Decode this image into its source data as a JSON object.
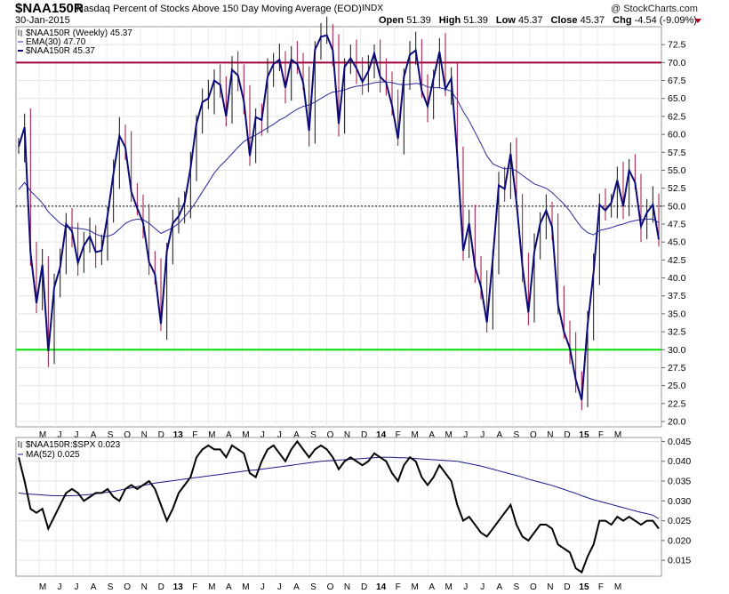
{
  "header": {
    "symbol": "$NAA150R",
    "description": "Nasdaq Percent of Stocks Above 150 Day Moving Average (EOD)",
    "exchange": "INDX",
    "copyright": "@ StockCharts.com",
    "date": "30-Jan-2015",
    "open_label": "Open",
    "open": "51.39",
    "high_label": "High",
    "high": "51.39",
    "low_label": "Low",
    "low": "45.37",
    "close_label": "Close",
    "close": "45.37",
    "chg_label": "Chg",
    "chg": "-4.54 (-9.09%)",
    "chg_arrow_color": "#b00020"
  },
  "chart_data": [
    {
      "type": "line",
      "panel": "main",
      "legend_position": "top-left",
      "legend": [
        "$NAA150R (Weekly) 45.37",
        "EMA(30) 47.70",
        "$NAA150R 45.37"
      ],
      "x_tick_labels": [
        "M",
        "J",
        "J",
        "A",
        "S",
        "O",
        "N",
        "D",
        "13",
        "F",
        "M",
        "A",
        "M",
        "J",
        "J",
        "A",
        "S",
        "O",
        "N",
        "D",
        "14",
        "F",
        "M",
        "A",
        "M",
        "J",
        "J",
        "A",
        "S",
        "O",
        "N",
        "D",
        "15",
        "F",
        "M"
      ],
      "bold_x_tick_labels": [
        "13",
        "14",
        "15"
      ],
      "ylim": [
        20,
        75
      ],
      "y_ticks": [
        20,
        22.5,
        25,
        27.5,
        30,
        32.5,
        35,
        37.5,
        40,
        42.5,
        45,
        47.5,
        50,
        52.5,
        55,
        57.5,
        60,
        62.5,
        65,
        67.5,
        70,
        72.5
      ],
      "reference_lines": [
        {
          "value": 70,
          "color": "#a0003c",
          "style": "solid"
        },
        {
          "value": 30,
          "color": "#00dd00",
          "style": "solid"
        },
        {
          "value": 50,
          "color": "#000000",
          "style": "dashed"
        }
      ],
      "series": [
        {
          "name": "$NAA150R",
          "color": "#0a0a7a",
          "style": "thick",
          "values": [
            58.3,
            61.0,
            43.5,
            36.5,
            41.8,
            29.8,
            38.7,
            41.5,
            47.5,
            46.5,
            42.1,
            44.5,
            45.8,
            43.6,
            43.8,
            48.7,
            54.6,
            59.8,
            58.2,
            52.0,
            49.7,
            47.7,
            42.2,
            40.5,
            33.6,
            43.7,
            47.6,
            48.6,
            50.5,
            55.3,
            61.5,
            64.5,
            65.0,
            67.5,
            66.9,
            62.5,
            69.0,
            68.2,
            64.6,
            57.0,
            62.4,
            62.0,
            68.0,
            69.8,
            70.4,
            66.5,
            70.4,
            69.8,
            67.2,
            60.5,
            71.8,
            73.6,
            73.8,
            71.7,
            61.5,
            69.4,
            70.6,
            69.2,
            67.3,
            68.8,
            71.3,
            68.0,
            67.2,
            64.0,
            59.4,
            68.0,
            71.1,
            71.7,
            66.1,
            63.9,
            67.8,
            71.5,
            66.3,
            67.8,
            57.1,
            43.8,
            47.6,
            41.5,
            38.8,
            33.8,
            42.7,
            52.9,
            52.4,
            57.3,
            50.5,
            41.6,
            35.2,
            43.6,
            47.6,
            49.4,
            47.1,
            36.3,
            32.5,
            30.2,
            25.8,
            23.0,
            33.5,
            40.8,
            50.2,
            49.4,
            50.5,
            53.6,
            50.0,
            55.0,
            53.3,
            47.2,
            49.1,
            50.2,
            45.37
          ]
        },
        {
          "name": "EMA(30)",
          "color": "#2a2a9a",
          "style": "thin",
          "values": [
            52.3,
            53.3,
            52.1,
            51.3,
            50.4,
            49.2,
            48.4,
            47.6,
            47.1,
            47.0,
            46.9,
            46.8,
            46.6,
            46.1,
            45.8,
            45.8,
            46.1,
            46.8,
            47.6,
            48.0,
            48.2,
            48.1,
            47.6,
            46.9,
            46.2,
            46.6,
            47.0,
            47.6,
            48.5,
            49.5,
            50.7,
            52.0,
            53.3,
            54.6,
            55.6,
            56.4,
            57.3,
            58.2,
            59.0,
            59.5,
            59.9,
            60.4,
            60.9,
            61.4,
            62.0,
            62.4,
            63.0,
            63.5,
            63.9,
            64.1,
            64.5,
            65.0,
            65.5,
            65.9,
            66.0,
            66.2,
            66.5,
            66.7,
            66.8,
            67.0,
            67.2,
            67.3,
            67.3,
            67.2,
            67.0,
            66.9,
            67.0,
            67.1,
            67.0,
            66.6,
            66.5,
            66.5,
            66.3,
            66.0,
            64.8,
            63.2,
            61.9,
            60.3,
            58.7,
            57.0,
            55.9,
            55.5,
            55.2,
            55.3,
            54.9,
            54.3,
            53.7,
            53.1,
            52.8,
            52.5,
            51.9,
            51.1,
            50.3,
            49.3,
            48.1,
            47.0,
            46.3,
            46.0,
            46.6,
            46.8,
            47.0,
            47.3,
            47.5,
            47.8,
            48.0,
            48.1,
            48.2,
            48.2,
            47.7
          ]
        }
      ],
      "bar_wicks_color": "#a01040"
    },
    {
      "type": "line",
      "panel": "ratio",
      "legend_position": "top-left",
      "legend": [
        "$NAA150R:$SPX 0.023",
        "MA(52) 0.025"
      ],
      "ylim": [
        0.011,
        0.046
      ],
      "y_ticks": [
        0.015,
        0.02,
        0.025,
        0.03,
        0.035,
        0.04,
        0.045
      ],
      "y_tick_labels": [
        "0.015",
        "0.020",
        "0.025",
        "0.030",
        "0.035",
        "0.040",
        "0.045"
      ],
      "series": [
        {
          "name": "$NAA150R:$SPX",
          "color": "#000000",
          "values": [
            0.041,
            0.035,
            0.028,
            0.027,
            0.028,
            0.023,
            0.026,
            0.029,
            0.032,
            0.033,
            0.032,
            0.03,
            0.031,
            0.032,
            0.032,
            0.033,
            0.031,
            0.03,
            0.033,
            0.034,
            0.033,
            0.034,
            0.035,
            0.033,
            0.029,
            0.025,
            0.028,
            0.032,
            0.034,
            0.036,
            0.041,
            0.043,
            0.044,
            0.043,
            0.043,
            0.041,
            0.044,
            0.043,
            0.042,
            0.037,
            0.036,
            0.04,
            0.043,
            0.044,
            0.042,
            0.04,
            0.043,
            0.045,
            0.043,
            0.041,
            0.043,
            0.044,
            0.043,
            0.041,
            0.038,
            0.04,
            0.041,
            0.04,
            0.039,
            0.04,
            0.042,
            0.041,
            0.04,
            0.037,
            0.035,
            0.039,
            0.041,
            0.04,
            0.036,
            0.034,
            0.036,
            0.039,
            0.037,
            0.035,
            0.029,
            0.025,
            0.026,
            0.024,
            0.022,
            0.021,
            0.023,
            0.025,
            0.027,
            0.029,
            0.024,
            0.021,
            0.02,
            0.022,
            0.024,
            0.024,
            0.023,
            0.019,
            0.018,
            0.017,
            0.013,
            0.012,
            0.016,
            0.019,
            0.025,
            0.025,
            0.024,
            0.026,
            0.025,
            0.026,
            0.025,
            0.024,
            0.025,
            0.025,
            0.023
          ]
        },
        {
          "name": "MA(52)",
          "color": "#1a1a8a",
          "values": [
            0.032,
            0.0318,
            0.0317,
            0.0316,
            0.0315,
            0.0314,
            0.0313,
            0.0313,
            0.0313,
            0.0313,
            0.0314,
            0.0315,
            0.0316,
            0.0318,
            0.032,
            0.0322,
            0.0324,
            0.0327,
            0.033,
            0.0333,
            0.0336,
            0.0339,
            0.0342,
            0.0345,
            0.0347,
            0.0349,
            0.0351,
            0.0353,
            0.0355,
            0.0357,
            0.0359,
            0.0361,
            0.0363,
            0.0365,
            0.0367,
            0.0369,
            0.0371,
            0.0373,
            0.0375,
            0.0377,
            0.0378,
            0.038,
            0.0382,
            0.0384,
            0.0386,
            0.0388,
            0.039,
            0.0392,
            0.0394,
            0.0396,
            0.0398,
            0.04,
            0.0401,
            0.0402,
            0.0403,
            0.0404,
            0.0405,
            0.0406,
            0.0407,
            0.0408,
            0.0409,
            0.041,
            0.041,
            0.041,
            0.0409,
            0.0409,
            0.0408,
            0.0407,
            0.0406,
            0.0405,
            0.0404,
            0.0403,
            0.0402,
            0.0401,
            0.04,
            0.0397,
            0.0394,
            0.0391,
            0.0388,
            0.0384,
            0.038,
            0.0376,
            0.0372,
            0.0368,
            0.0364,
            0.036,
            0.0355,
            0.0351,
            0.0347,
            0.0343,
            0.0339,
            0.0334,
            0.0329,
            0.0324,
            0.0319,
            0.0313,
            0.0308,
            0.0303,
            0.0299,
            0.0295,
            0.0291,
            0.0287,
            0.0283,
            0.0279,
            0.0275,
            0.0271,
            0.0268,
            0.0264,
            0.0255
          ]
        }
      ]
    }
  ]
}
